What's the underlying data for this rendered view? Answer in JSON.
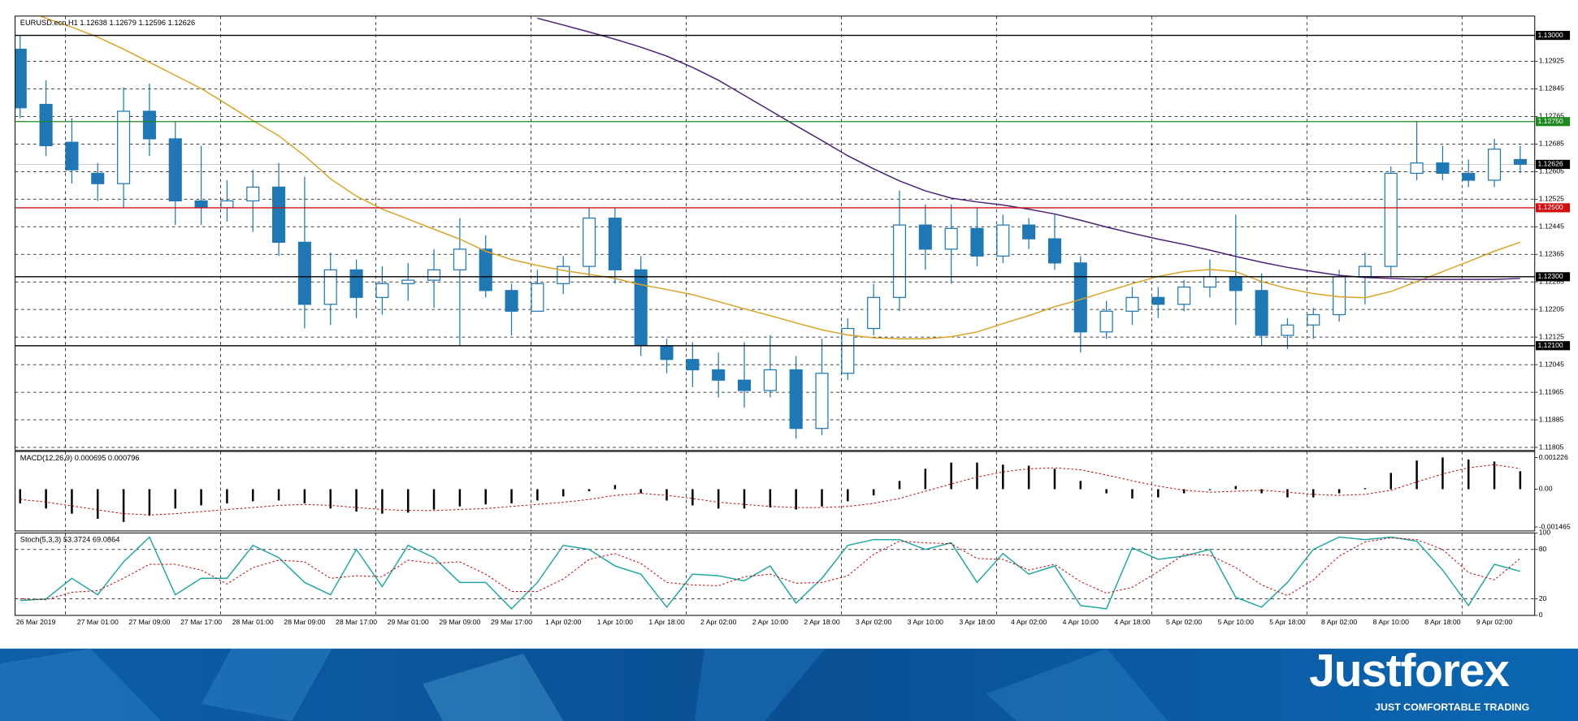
{
  "chart_data": [
    {
      "type": "candlestick",
      "title": "EURUSD.ecn,H1  1.12638 1.12679 1.12596 1.12626",
      "categories": [
        "26 Mar 2019",
        null,
        null,
        "27 Mar 01:00",
        null,
        "27 Mar 09:00",
        null,
        "27 Mar 17:00",
        null,
        "28 Mar 01:00",
        null,
        "28 Mar 09:00",
        null,
        "28 Mar 17:00",
        null,
        "29 Mar 01:00",
        null,
        "29 Mar 09:00",
        null,
        "29 Mar 17:00",
        null,
        "1 Apr 02:00",
        null,
        "1 Apr 10:00",
        null,
        "1 Apr 18:00",
        null,
        "2 Apr 02:00",
        null,
        "2 Apr 10:00",
        null,
        "2 Apr 18:00",
        null,
        "3 Apr 02:00",
        null,
        "3 Apr 10:00",
        null,
        "3 Apr 18:00",
        null,
        "4 Apr 02:00",
        null,
        "4 Apr 10:00",
        null,
        "4 Apr 18:00",
        null,
        "5 Apr 02:00",
        null,
        "5 Apr 10:00",
        null,
        "5 Apr 18:00",
        null,
        "8 Apr 02:00",
        null,
        "8 Apr 10:00",
        null,
        "8 Apr 18:00",
        null,
        "9 Apr 02:00",
        null
      ],
      "open": [
        1.1296,
        1.128,
        1.1269,
        1.126,
        1.1257,
        1.1278,
        1.127,
        1.1252,
        1.125,
        1.1252,
        1.1256,
        1.124,
        1.1222,
        1.1232,
        1.1224,
        1.1228,
        1.1229,
        1.1232,
        1.1238,
        1.1226,
        1.122,
        1.1228,
        1.1233,
        1.1247,
        1.1232,
        1.121,
        1.1206,
        1.1203,
        1.12,
        1.1197,
        1.1203,
        1.1186,
        1.1202,
        1.1215,
        1.1224,
        1.1245,
        1.1238,
        1.1244,
        1.1236,
        1.1245,
        1.1241,
        1.1234,
        1.1214,
        1.122,
        1.1224,
        1.1222,
        1.1227,
        1.123,
        1.1226,
        1.1213,
        1.1216,
        1.1219,
        1.123,
        1.1233,
        1.126,
        1.1263,
        1.126,
        1.1258,
        1.1264
      ],
      "high": [
        1.13,
        1.1287,
        1.1276,
        1.1263,
        1.1285,
        1.1286,
        1.1275,
        1.1268,
        1.1258,
        1.1261,
        1.1263,
        1.1259,
        1.1237,
        1.1235,
        1.1233,
        1.1234,
        1.1238,
        1.1247,
        1.1242,
        1.1228,
        1.1232,
        1.1236,
        1.125,
        1.125,
        1.1236,
        1.1212,
        1.1211,
        1.1208,
        1.1211,
        1.1213,
        1.1207,
        1.1212,
        1.1218,
        1.1228,
        1.1255,
        1.1251,
        1.1251,
        1.125,
        1.1248,
        1.1247,
        1.1248,
        1.1236,
        1.1223,
        1.1227,
        1.1227,
        1.1229,
        1.1235,
        1.1248,
        1.1231,
        1.1218,
        1.1221,
        1.1232,
        1.1237,
        1.1262,
        1.1275,
        1.1268,
        1.1264,
        1.127,
        1.1268
      ],
      "low": [
        1.1276,
        1.1265,
        1.1257,
        1.1252,
        1.125,
        1.1265,
        1.1245,
        1.1245,
        1.1246,
        1.1243,
        1.1236,
        1.1215,
        1.1216,
        1.1218,
        1.1219,
        1.1223,
        1.1221,
        1.121,
        1.1224,
        1.1213,
        1.122,
        1.1225,
        1.123,
        1.1228,
        1.1207,
        1.1202,
        1.1198,
        1.1195,
        1.1192,
        1.1195,
        1.1183,
        1.1184,
        1.12,
        1.1213,
        1.122,
        1.1232,
        1.1228,
        1.1233,
        1.1234,
        1.1238,
        1.1232,
        1.1208,
        1.1212,
        1.1216,
        1.1218,
        1.122,
        1.1224,
        1.1216,
        1.121,
        1.1209,
        1.1212,
        1.1217,
        1.1222,
        1.123,
        1.1258,
        1.1258,
        1.1256,
        1.1256,
        1.126
      ],
      "close": [
        1.1279,
        1.1268,
        1.1261,
        1.1257,
        1.1278,
        1.127,
        1.1252,
        1.125,
        1.1252,
        1.1256,
        1.124,
        1.1222,
        1.1232,
        1.1224,
        1.1228,
        1.1229,
        1.1232,
        1.1238,
        1.1226,
        1.122,
        1.1228,
        1.1233,
        1.1247,
        1.1232,
        1.121,
        1.1206,
        1.1203,
        1.12,
        1.1197,
        1.1203,
        1.1186,
        1.1202,
        1.1215,
        1.1224,
        1.1245,
        1.1238,
        1.1244,
        1.1236,
        1.1245,
        1.1241,
        1.1234,
        1.1214,
        1.122,
        1.1224,
        1.1222,
        1.1227,
        1.123,
        1.1226,
        1.1213,
        1.1216,
        1.1219,
        1.123,
        1.1233,
        1.126,
        1.1263,
        1.126,
        1.1258,
        1.1267,
        1.12626
      ],
      "up_color": "#ffffff",
      "down_color": "#1f78b4",
      "edge_color": "#1f78b4",
      "series": [
        {
          "color": "#d9a427",
          "values": [
            1.1308,
            1.1305,
            1.13024,
            1.12995,
            1.1296,
            1.12922,
            1.12884,
            1.12846,
            1.128,
            1.12753,
            1.12709,
            1.12651,
            1.12584,
            1.12534,
            1.12496,
            1.12467,
            1.12438,
            1.12409,
            1.12374,
            1.1235,
            1.12333,
            1.12318,
            1.12307,
            1.12295,
            1.12277,
            1.12263,
            1.12248,
            1.12228,
            1.12207,
            1.12187,
            1.12166,
            1.12146,
            1.12131,
            1.12123,
            1.1212,
            1.1212,
            1.12126,
            1.1214,
            1.12164,
            1.12187,
            1.12213,
            1.12234,
            1.12257,
            1.1228,
            1.12301,
            1.12315,
            1.12321,
            1.12315,
            1.12286,
            1.12266,
            1.12251,
            1.12242,
            1.12239,
            1.12257,
            1.12286,
            1.12315,
            1.12344,
            1.12374,
            1.124
          ]
        },
        {
          "color": "#4b1f7a",
          "values": [
            null,
            null,
            null,
            null,
            null,
            null,
            null,
            null,
            null,
            null,
            null,
            null,
            null,
            null,
            null,
            null,
            null,
            null,
            null,
            null,
            1.1305,
            1.1303,
            1.1301,
            1.12989,
            1.12966,
            1.1294,
            1.12907,
            1.1287,
            1.12826,
            1.12782,
            1.12738,
            1.12695,
            1.12651,
            1.12613,
            1.12578,
            1.12549,
            1.12528,
            1.12517,
            1.12508,
            1.12496,
            1.12482,
            1.12464,
            1.12444,
            1.12426,
            1.12409,
            1.12394,
            1.12377,
            1.12359,
            1.12342,
            1.12327,
            1.12315,
            1.12304,
            1.12298,
            1.12295,
            1.12292,
            1.12292,
            1.12292,
            1.12292,
            1.12295
          ]
        }
      ],
      "ylim": [
        1.11796,
        1.13056
      ],
      "yticks": [
        1.12925,
        1.12845,
        1.12765,
        1.12685,
        1.12605,
        1.12525,
        1.12445,
        1.12365,
        1.12285,
        1.12205,
        1.12125,
        1.12045,
        1.11965,
        1.11885,
        1.11805
      ],
      "levels": [
        {
          "value": 1.13,
          "label": "1.13000",
          "color": "#000000"
        },
        {
          "value": 1.1275,
          "label": "1.12750",
          "color": "#1e8a1e"
        },
        {
          "value": 1.125,
          "label": "1.12500",
          "color": "#d01010"
        },
        {
          "value": 1.123,
          "label": "1.12300",
          "color": "#000000"
        },
        {
          "value": 1.121,
          "label": "1.12100",
          "color": "#000000"
        }
      ],
      "last_price": 1.12626,
      "grid": true
    },
    {
      "type": "macd",
      "title": "MACD(12,26,9) 0.000695 0.000796",
      "series": [
        {
          "color": "#000000",
          "values": [
            -0.00055,
            -0.00075,
            -0.00095,
            -0.00115,
            -0.00127,
            -0.00103,
            -0.00075,
            -0.00063,
            -0.00055,
            -0.00047,
            -0.00044,
            -0.00055,
            -0.00075,
            -0.00087,
            -0.00095,
            -0.00091,
            -0.00079,
            -0.00067,
            -0.00059,
            -0.00055,
            -0.00044,
            -0.00028,
            -8e-05,
            0.00016,
            -0.00016,
            -0.00044,
            -0.00063,
            -0.00075,
            -0.00075,
            -0.00071,
            -0.00079,
            -0.00067,
            -0.00047,
            -0.00024,
            0.00032,
            0.00079,
            0.00103,
            0.00103,
            0.00095,
            0.00091,
            0.00079,
            0.00032,
            -0.00016,
            -0.00036,
            -0.00032,
            -0.00016,
            -4e-05,
            0.00012,
            -0.00016,
            -0.00032,
            -0.00032,
            -0.00016,
            4e-05,
            0.00063,
            0.00111,
            0.00123,
            0.00115,
            0.00107,
            0.000695
          ]
        },
        {
          "color": "#c00000",
          "dashed": true,
          "values": [
            -0.0004,
            -0.0005,
            -0.00065,
            -0.0008,
            -0.00095,
            -0.001,
            -0.00095,
            -0.00087,
            -0.00079,
            -0.00071,
            -0.00063,
            -0.00059,
            -0.00063,
            -0.00071,
            -0.00079,
            -0.00083,
            -0.00083,
            -0.00079,
            -0.00075,
            -0.00067,
            -0.00059,
            -0.00051,
            -0.0004,
            -0.00024,
            -0.00016,
            -0.00024,
            -0.00036,
            -0.00051,
            -0.00059,
            -0.00067,
            -0.00071,
            -0.00071,
            -0.00067,
            -0.00055,
            -0.00036,
            -8e-05,
            0.0002,
            0.00047,
            0.00067,
            0.00079,
            0.00083,
            0.00075,
            0.00055,
            0.00032,
            0.00012,
            -4e-05,
            -0.00012,
            -8e-05,
            -4e-05,
            -0.00012,
            -0.0002,
            -0.00024,
            -0.0002,
            -4e-05,
            0.00028,
            0.00059,
            0.00083,
            0.00095,
            0.000796
          ]
        }
      ],
      "ylim": [
        -0.00162,
        0.00146
      ],
      "yticks": [
        0.001226,
        {
          "value": 0,
          "label": "0.00"
        },
        -0.001465
      ]
    },
    {
      "type": "stochastic",
      "title": "Stoch(5,3,3) 53.3724 69.0864",
      "series": [
        {
          "color": "#20a8a0",
          "values": [
            18,
            20,
            45,
            25,
            65,
            95,
            25,
            45,
            45,
            85,
            70,
            40,
            25,
            80,
            35,
            85,
            70,
            40,
            40,
            8,
            40,
            85,
            80,
            60,
            50,
            10,
            50,
            48,
            42,
            60,
            15,
            45,
            85,
            92,
            92,
            80,
            88,
            40,
            75,
            50,
            60,
            12,
            8,
            82,
            68,
            72,
            80,
            22,
            10,
            40,
            80,
            95,
            92,
            95,
            90,
            55,
            12,
            62,
            53.3724
          ]
        },
        {
          "color": "#c00000",
          "dashed": true,
          "values": [
            20,
            19,
            28,
            30,
            45,
            62,
            62,
            55,
            38,
            58,
            67,
            65,
            45,
            48,
            47,
            67,
            63,
            65,
            50,
            29,
            29,
            44,
            68,
            75,
            63,
            40,
            37,
            36,
            47,
            50,
            39,
            40,
            48,
            74,
            90,
            88,
            87,
            69,
            68,
            55,
            62,
            41,
            27,
            34,
            53,
            74,
            73,
            58,
            37,
            24,
            43,
            72,
            89,
            94,
            92,
            80,
            52,
            43,
            69.0864
          ]
        }
      ],
      "ylim": [
        0,
        100
      ],
      "yticks": [
        100,
        80,
        20,
        0
      ],
      "grid": true
    }
  ],
  "brand": {
    "name": "Justforex",
    "tagline": "JUST COMFORTABLE TRADING"
  }
}
